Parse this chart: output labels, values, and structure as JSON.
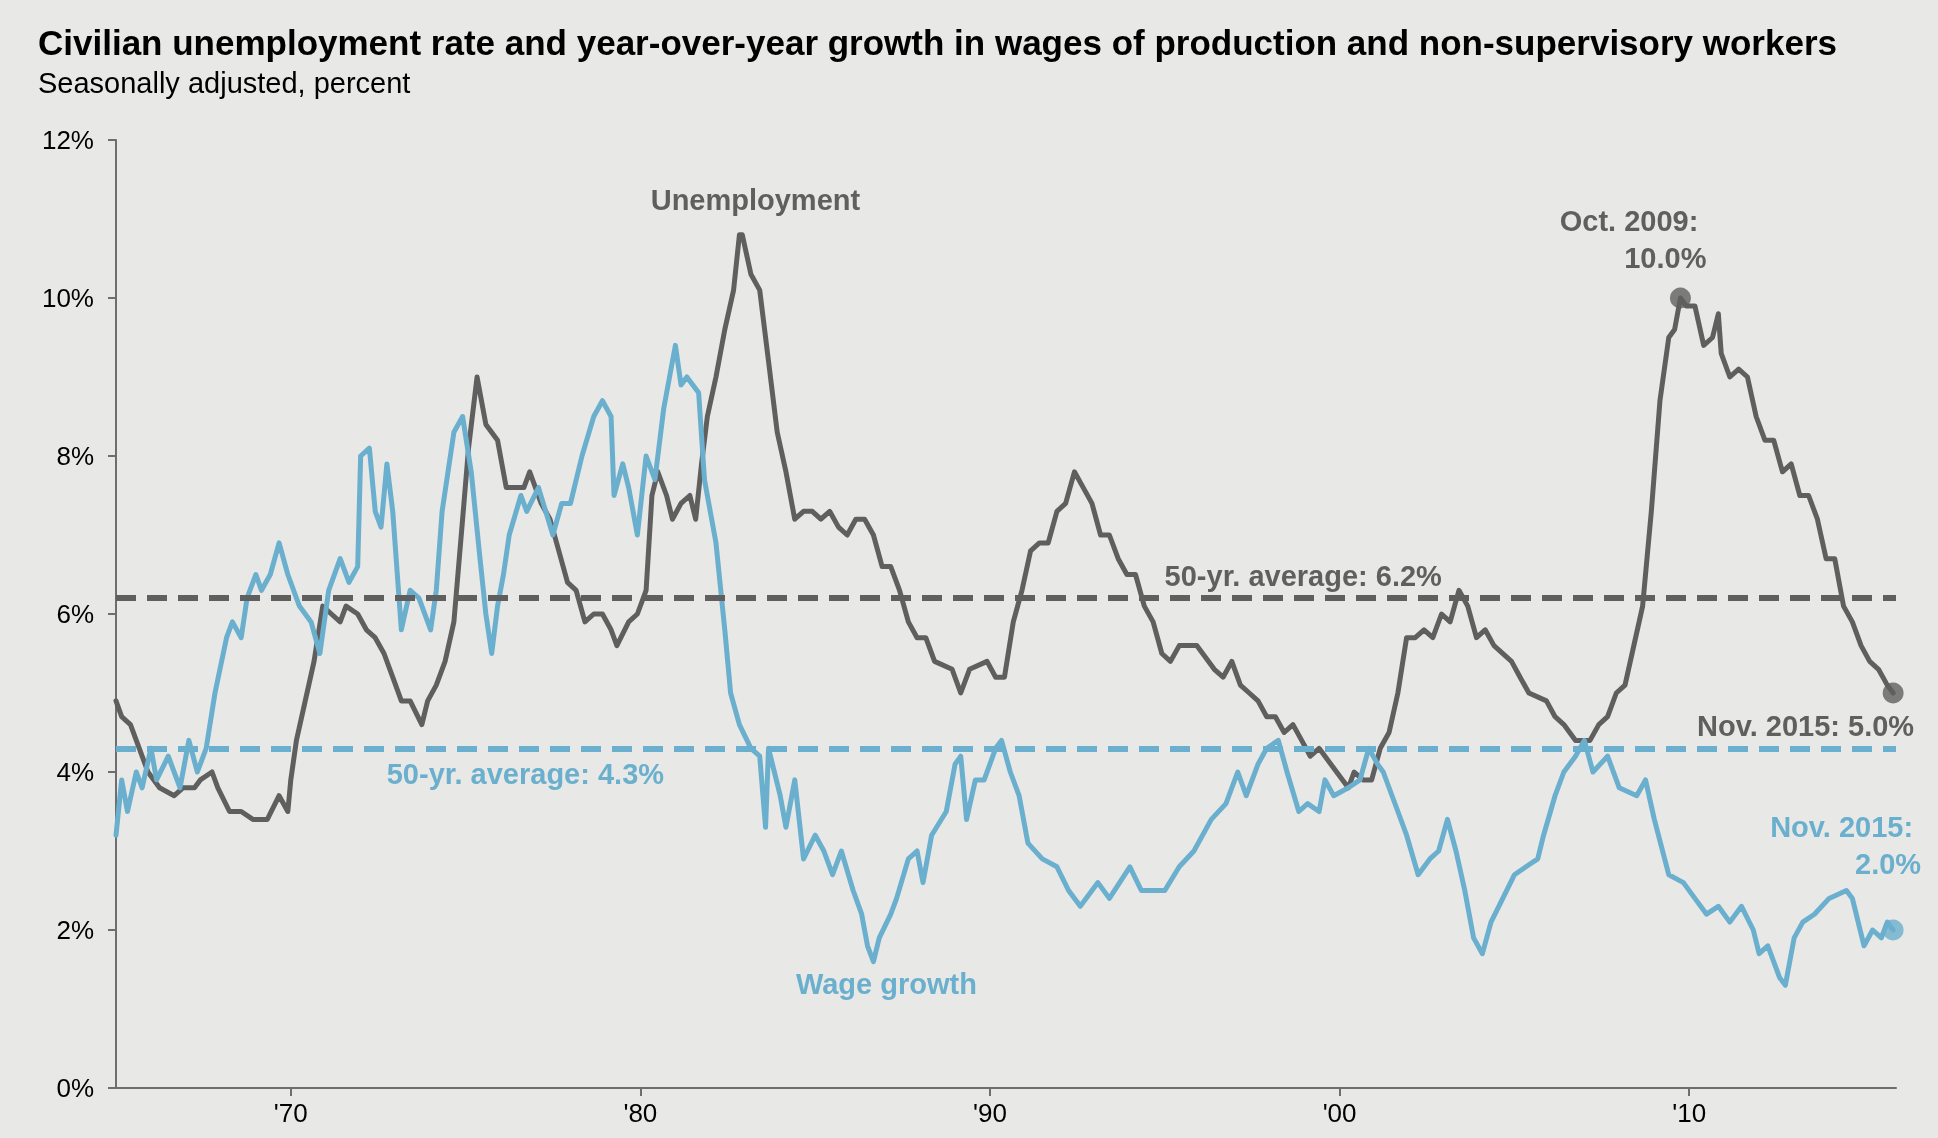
{
  "chart_data": {
    "type": "line",
    "title": "Civilian unemployment rate and year-over-year growth in wages of production and non-supervisory workers",
    "subtitle": "Seasonally adjusted, percent",
    "xlim": [
      "1965-01",
      "2015-12"
    ],
    "xticks": [
      {
        "value": "1970-01",
        "label": "'70"
      },
      {
        "value": "1980-01",
        "label": "'80"
      },
      {
        "value": "1990-01",
        "label": "'90"
      },
      {
        "value": "2000-01",
        "label": "'00"
      },
      {
        "value": "2010-01",
        "label": "'10"
      }
    ],
    "ylim": [
      0,
      12
    ],
    "yticks": [
      {
        "value": 0,
        "label": "0%"
      },
      {
        "value": 2,
        "label": "2%"
      },
      {
        "value": 4,
        "label": "4%"
      },
      {
        "value": 6,
        "label": "6%"
      },
      {
        "value": 8,
        "label": "8%"
      },
      {
        "value": 10,
        "label": "10%"
      },
      {
        "value": 12,
        "label": "12%"
      }
    ],
    "marker": "none",
    "line_style": "solid",
    "series": [
      {
        "name": "Unemployment",
        "color": "#5f5f5f",
        "x": [
          "1965-01",
          "1965-03",
          "1965-06",
          "1965-09",
          "1965-12",
          "1966-04",
          "1966-09",
          "1966-12",
          "1967-04",
          "1967-06",
          "1967-10",
          "1967-12",
          "1968-04",
          "1968-08",
          "1968-12",
          "1969-05",
          "1969-09",
          "1969-12",
          "1970-01",
          "1970-03",
          "1970-06",
          "1970-09",
          "1970-12",
          "1971-03",
          "1971-06",
          "1971-08",
          "1971-12",
          "1972-03",
          "1972-06",
          "1972-09",
          "1972-12",
          "1973-03",
          "1973-06",
          "1973-10",
          "1973-12",
          "1974-03",
          "1974-06",
          "1974-09",
          "1974-12",
          "1975-02",
          "1975-05",
          "1975-08",
          "1975-12",
          "1976-03",
          "1976-06",
          "1976-09",
          "1976-11",
          "1977-03",
          "1977-06",
          "1977-09",
          "1977-12",
          "1978-03",
          "1978-06",
          "1978-09",
          "1978-12",
          "1979-03",
          "1979-05",
          "1979-09",
          "1979-12",
          "1980-03",
          "1980-05",
          "1980-07",
          "1980-10",
          "1980-12",
          "1981-03",
          "1981-06",
          "1981-08",
          "1981-10",
          "1981-12",
          "1982-03",
          "1982-06",
          "1982-09",
          "1982-11",
          "1982-12",
          "1983-03",
          "1983-06",
          "1983-09",
          "1983-12",
          "1984-03",
          "1984-06",
          "1984-09",
          "1984-12",
          "1985-03",
          "1985-06",
          "1985-09",
          "1985-12",
          "1986-03",
          "1986-06",
          "1986-09",
          "1986-12",
          "1987-03",
          "1987-06",
          "1987-09",
          "1987-12",
          "1988-03",
          "1988-06",
          "1988-12",
          "1989-03",
          "1989-06",
          "1989-12",
          "1990-03",
          "1990-06",
          "1990-09",
          "1990-12",
          "1991-03",
          "1991-06",
          "1991-09",
          "1991-12",
          "1992-03",
          "1992-06",
          "1992-09",
          "1992-12",
          "1993-03",
          "1993-06",
          "1993-09",
          "1993-12",
          "1994-03",
          "1994-06",
          "1994-09",
          "1994-12",
          "1995-03",
          "1995-06",
          "1995-12",
          "1996-06",
          "1996-09",
          "1996-12",
          "1997-03",
          "1997-06",
          "1997-09",
          "1997-12",
          "1998-03",
          "1998-06",
          "1998-09",
          "1998-12",
          "1999-03",
          "1999-06",
          "1999-12",
          "2000-04",
          "2000-06",
          "2000-09",
          "2000-12",
          "2001-03",
          "2001-06",
          "2001-09",
          "2001-12",
          "2002-03",
          "2002-06",
          "2002-09",
          "2002-12",
          "2003-03",
          "2003-06",
          "2003-09",
          "2003-12",
          "2004-03",
          "2004-06",
          "2004-12",
          "2005-03",
          "2005-06",
          "2005-12",
          "2006-03",
          "2006-06",
          "2006-10",
          "2007-03",
          "2007-06",
          "2007-09",
          "2007-12",
          "2008-03",
          "2008-06",
          "2008-09",
          "2008-12",
          "2009-03",
          "2009-06",
          "2009-08",
          "2009-10",
          "2009-12",
          "2010-03",
          "2010-06",
          "2010-09",
          "2010-11",
          "2010-12",
          "2011-03",
          "2011-06",
          "2011-09",
          "2011-12",
          "2012-03",
          "2012-06",
          "2012-09",
          "2012-12",
          "2013-03",
          "2013-06",
          "2013-09",
          "2013-12",
          "2014-03",
          "2014-06",
          "2014-09",
          "2014-12",
          "2015-03",
          "2015-06",
          "2015-09",
          "2015-11"
        ],
        "values": [
          4.9,
          4.7,
          4.6,
          4.3,
          4.0,
          3.8,
          3.7,
          3.8,
          3.8,
          3.9,
          4.0,
          3.8,
          3.5,
          3.5,
          3.4,
          3.4,
          3.7,
          3.5,
          3.9,
          4.4,
          4.9,
          5.4,
          6.1,
          6.0,
          5.9,
          6.1,
          6.0,
          5.8,
          5.7,
          5.5,
          5.2,
          4.9,
          4.9,
          4.6,
          4.9,
          5.1,
          5.4,
          5.9,
          7.2,
          8.1,
          9.0,
          8.4,
          8.2,
          7.6,
          7.6,
          7.6,
          7.8,
          7.4,
          7.2,
          6.8,
          6.4,
          6.3,
          5.9,
          6.0,
          6.0,
          5.8,
          5.6,
          5.9,
          6.0,
          6.3,
          7.5,
          7.8,
          7.5,
          7.2,
          7.4,
          7.5,
          7.2,
          7.9,
          8.5,
          9.0,
          9.6,
          10.1,
          10.8,
          10.8,
          10.3,
          10.1,
          9.2,
          8.3,
          7.8,
          7.2,
          7.3,
          7.3,
          7.2,
          7.3,
          7.1,
          7.0,
          7.2,
          7.2,
          7.0,
          6.6,
          6.6,
          6.3,
          5.9,
          5.7,
          5.7,
          5.4,
          5.3,
          5.0,
          5.3,
          5.4,
          5.2,
          5.2,
          5.9,
          6.3,
          6.8,
          6.9,
          6.9,
          7.3,
          7.4,
          7.8,
          7.6,
          7.4,
          7.0,
          7.0,
          6.7,
          6.5,
          6.5,
          6.1,
          5.9,
          5.5,
          5.4,
          5.6,
          5.6,
          5.3,
          5.2,
          5.4,
          5.1,
          5.0,
          4.9,
          4.7,
          4.7,
          4.5,
          4.6,
          4.4,
          4.2,
          4.3,
          4.0,
          3.8,
          4.0,
          3.9,
          3.9,
          4.3,
          4.5,
          5.0,
          5.7,
          5.7,
          5.8,
          5.7,
          6.0,
          5.9,
          6.3,
          6.1,
          5.7,
          5.8,
          5.6,
          5.4,
          5.2,
          5.0,
          4.9,
          4.7,
          4.6,
          4.4,
          4.4,
          4.6,
          4.7,
          5.0,
          5.1,
          5.6,
          6.1,
          7.3,
          8.7,
          9.5,
          9.6,
          10.0,
          9.9,
          9.9,
          9.4,
          9.5,
          9.8,
          9.3,
          9.0,
          9.1,
          9.0,
          8.5,
          8.2,
          8.2,
          7.8,
          7.9,
          7.5,
          7.5,
          7.2,
          6.7,
          6.7,
          6.1,
          5.9,
          5.6,
          5.4,
          5.3,
          5.1,
          5.0
        ]
      },
      {
        "name": "Wage growth",
        "color": "#6aafcd",
        "x": [
          "1965-01",
          "1965-03",
          "1965-05",
          "1965-08",
          "1965-10",
          "1966-01",
          "1966-03",
          "1966-07",
          "1966-11",
          "1967-02",
          "1967-05",
          "1967-08",
          "1967-11",
          "1968-03",
          "1968-05",
          "1968-08",
          "1968-10",
          "1969-01",
          "1969-03",
          "1969-06",
          "1969-09",
          "1969-12",
          "1970-04",
          "1970-08",
          "1970-11",
          "1971-02",
          "1971-06",
          "1971-09",
          "1971-12",
          "1972-01",
          "1972-04",
          "1972-06",
          "1972-08",
          "1972-10",
          "1972-12",
          "1973-03",
          "1973-06",
          "1973-09",
          "1974-01",
          "1974-03",
          "1974-05",
          "1974-09",
          "1974-12",
          "1975-03",
          "1975-06",
          "1975-08",
          "1975-10",
          "1975-12",
          "1976-02",
          "1976-04",
          "1976-08",
          "1976-10",
          "1977-02",
          "1977-07",
          "1977-10",
          "1978-01",
          "1978-05",
          "1978-09",
          "1978-12",
          "1979-03",
          "1979-04",
          "1979-07",
          "1979-09",
          "1979-12",
          "1980-03",
          "1980-06",
          "1980-09",
          "1981-01",
          "1981-03",
          "1981-05",
          "1981-09",
          "1981-11",
          "1982-03",
          "1982-06",
          "1982-08",
          "1982-11",
          "1983-03",
          "1983-06",
          "1983-08",
          "1983-09",
          "1984-01",
          "1984-03",
          "1984-06",
          "1984-09",
          "1985-01",
          "1985-04",
          "1985-07",
          "1985-10",
          "1986-02",
          "1986-05",
          "1986-07",
          "1986-09",
          "1986-11",
          "1987-03",
          "1987-05",
          "1987-09",
          "1987-12",
          "1988-02",
          "1988-05",
          "1988-10",
          "1989-01",
          "1989-03",
          "1989-05",
          "1989-08",
          "1989-11",
          "1990-03",
          "1990-05",
          "1990-08",
          "1990-11",
          "1991-02",
          "1991-07",
          "1991-12",
          "1992-04",
          "1992-08",
          "1993-02",
          "1993-06",
          "1994-01",
          "1994-05",
          "1995-01",
          "1995-06",
          "1995-11",
          "1996-05",
          "1996-10",
          "1997-02",
          "1997-05",
          "1997-09",
          "1997-12",
          "1998-04",
          "1998-07",
          "1998-11",
          "1999-02",
          "1999-06",
          "1999-08",
          "1999-11",
          "2000-04",
          "2000-08",
          "2000-11",
          "2001-02",
          "2001-04",
          "2001-09",
          "2001-12",
          "2002-04",
          "2002-08",
          "2002-11",
          "2003-02",
          "2003-05",
          "2003-08",
          "2003-11",
          "2004-02",
          "2004-05",
          "2004-09",
          "2005-01",
          "2005-05",
          "2005-09",
          "2005-11",
          "2006-03",
          "2006-06",
          "2006-10",
          "2007-01",
          "2007-04",
          "2007-09",
          "2008-01",
          "2008-07",
          "2008-10",
          "2009-01",
          "2009-06",
          "2009-11",
          "2010-03",
          "2010-07",
          "2010-11",
          "2011-03",
          "2011-07",
          "2011-11",
          "2012-01",
          "2012-04",
          "2012-08",
          "2012-10",
          "2013-01",
          "2013-04",
          "2013-08",
          "2014-01",
          "2014-07",
          "2014-09",
          "2015-01",
          "2015-04",
          "2015-07",
          "2015-09",
          "2015-11"
        ],
        "values": [
          3.2,
          3.9,
          3.5,
          4.0,
          3.8,
          4.3,
          3.9,
          4.2,
          3.8,
          4.4,
          4.0,
          4.3,
          5.0,
          5.7,
          5.9,
          5.7,
          6.2,
          6.5,
          6.3,
          6.5,
          6.9,
          6.5,
          6.1,
          5.9,
          5.5,
          6.3,
          6.7,
          6.4,
          6.6,
          8.0,
          8.1,
          7.3,
          7.1,
          7.9,
          7.3,
          5.8,
          6.3,
          6.2,
          5.8,
          6.3,
          7.3,
          8.3,
          8.5,
          7.8,
          6.7,
          6.0,
          5.5,
          6.1,
          6.5,
          7.0,
          7.5,
          7.3,
          7.6,
          7.0,
          7.4,
          7.4,
          8.0,
          8.5,
          8.7,
          8.5,
          7.5,
          7.9,
          7.6,
          7.0,
          8.0,
          7.7,
          8.6,
          9.4,
          8.9,
          9.0,
          8.8,
          7.7,
          6.9,
          5.8,
          5.0,
          4.6,
          4.3,
          4.2,
          3.3,
          4.3,
          3.7,
          3.3,
          3.9,
          2.9,
          3.2,
          3.0,
          2.7,
          3.0,
          2.5,
          2.2,
          1.8,
          1.6,
          1.9,
          2.2,
          2.4,
          2.9,
          3.0,
          2.6,
          3.2,
          3.5,
          4.1,
          4.2,
          3.4,
          3.9,
          3.9,
          4.3,
          4.4,
          4.0,
          3.7,
          3.1,
          2.9,
          2.8,
          2.5,
          2.3,
          2.6,
          2.4,
          2.8,
          2.5,
          2.5,
          2.8,
          3.0,
          3.4,
          3.6,
          4.0,
          3.7,
          4.1,
          4.3,
          4.4,
          4.0,
          3.5,
          3.6,
          3.5,
          3.9,
          3.7,
          3.8,
          3.9,
          4.3,
          4.1,
          4.0,
          3.5,
          3.2,
          2.7,
          2.9,
          3.0,
          3.4,
          3.0,
          2.5,
          1.9,
          1.7,
          2.1,
          2.4,
          2.7,
          2.8,
          2.9,
          3.2,
          3.7,
          4.0,
          4.2,
          4.4,
          4.0,
          4.2,
          3.8,
          3.7,
          3.9,
          3.4,
          2.7,
          2.6,
          2.4,
          2.2,
          2.3,
          2.1,
          2.3,
          2.0,
          1.7,
          1.8,
          1.4,
          1.3,
          1.9,
          2.1,
          2.2,
          2.4,
          2.5,
          2.4,
          1.8,
          2.0,
          1.9,
          2.1,
          2.0
        ]
      },
      {
        "type": "scatter",
        "marker": "circle",
        "x": [
          "2009-10",
          "2015-11",
          "2015-11"
        ],
        "values": [
          10.0,
          5.0,
          2.0
        ],
        "colors": [
          "#5f5f5f",
          "#5f5f5f",
          "#6aafcd"
        ]
      }
    ],
    "ref_lines": [
      {
        "axis": "y",
        "value": 6.2,
        "label": "50-yr. average: 6.2%",
        "color": "#5f5f5f",
        "line_style": "dashed"
      },
      {
        "axis": "y",
        "value": 4.3,
        "label": "50-yr. average: 4.3%",
        "color": "#6aafcd",
        "line_style": "dashed"
      }
    ],
    "annotations": [
      {
        "text": "Oct. 2009: 10.0%",
        "x": "2009-10",
        "y": 10.0
      },
      {
        "text": "Nov. 2015: 5.0%",
        "x": "2015-11",
        "y": 5.0
      },
      {
        "text": "Nov. 2015: 2.0%",
        "x": "2015-11",
        "y": 2.0
      }
    ]
  }
}
